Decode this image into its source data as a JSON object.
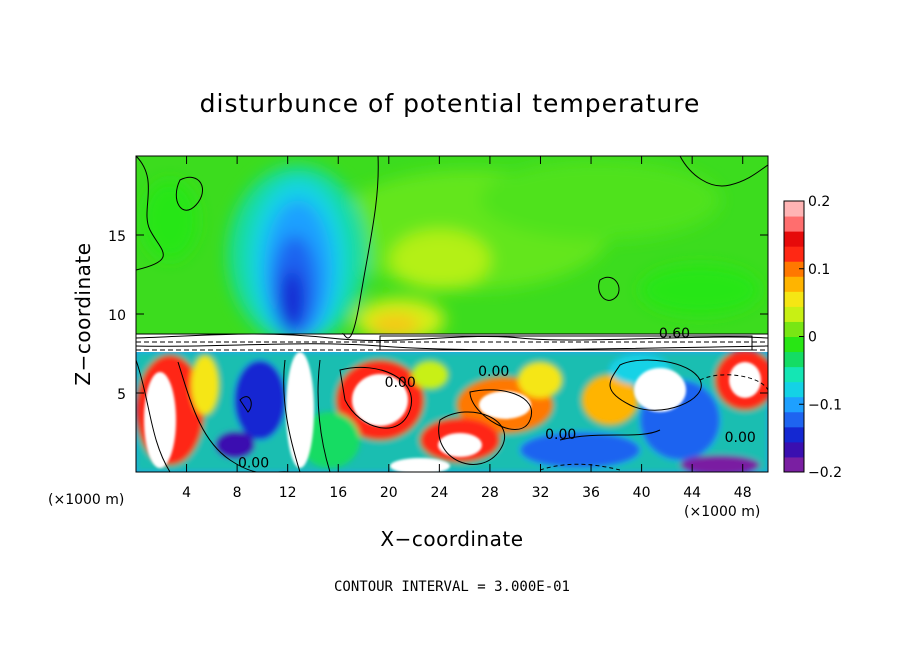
{
  "chart_data": {
    "type": "heatmap",
    "title": "disturbunce of potential temperature",
    "xlabel": "X−coordinate",
    "ylabel": "Z−coordinate",
    "x_unit": "(×1000 m)",
    "x_unit_right": "(×1000 m)",
    "xlim": [
      0,
      50
    ],
    "ylim": [
      0,
      20
    ],
    "x_ticks": [
      4,
      8,
      12,
      16,
      20,
      24,
      28,
      32,
      36,
      40,
      44,
      48
    ],
    "x_tick_labels": [
      "4",
      "8",
      "12",
      "16",
      "20",
      "24",
      "28",
      "32",
      "36",
      "40",
      "44",
      "48"
    ],
    "y_ticks": [
      5,
      10,
      15
    ],
    "y_tick_labels": [
      "5",
      "10",
      "15"
    ],
    "colorbar": {
      "range": [
        -0.2,
        0.2
      ],
      "ticks": [
        0.2,
        0.1,
        0,
        -0.1,
        -0.2
      ],
      "tick_labels": [
        "0.2",
        "0.1",
        "0",
        "−0.1",
        "−0.2"
      ],
      "colors": [
        "#7a1fa2",
        "#3a0fb0",
        "#1428d2",
        "#1e64f0",
        "#1ea0ff",
        "#14d2e6",
        "#14e6b4",
        "#14dc64",
        "#28e614",
        "#78e614",
        "#c8f014",
        "#f5e614",
        "#ffb400",
        "#ff7800",
        "#ff2814",
        "#e60a0a",
        "#ff6e6e",
        "#ffb4b4"
      ]
    },
    "contour_labels": [
      {
        "text": "0.60",
        "x": 42.6,
        "z": 8.8
      },
      {
        "text": "0.00",
        "x": 9.3,
        "z": 0.6
      },
      {
        "text": "0.00",
        "x": 20.9,
        "z": 5.7
      },
      {
        "text": "0.00",
        "x": 28.3,
        "z": 6.4
      },
      {
        "text": "0.00",
        "x": 33.6,
        "z": 2.4
      },
      {
        "text": "0.00",
        "x": 47.8,
        "z": 2.2
      }
    ],
    "contour_interval_text": "CONTOUR INTERVAL = 3.000E-01",
    "grid": false,
    "legend": "colorbar-right"
  }
}
